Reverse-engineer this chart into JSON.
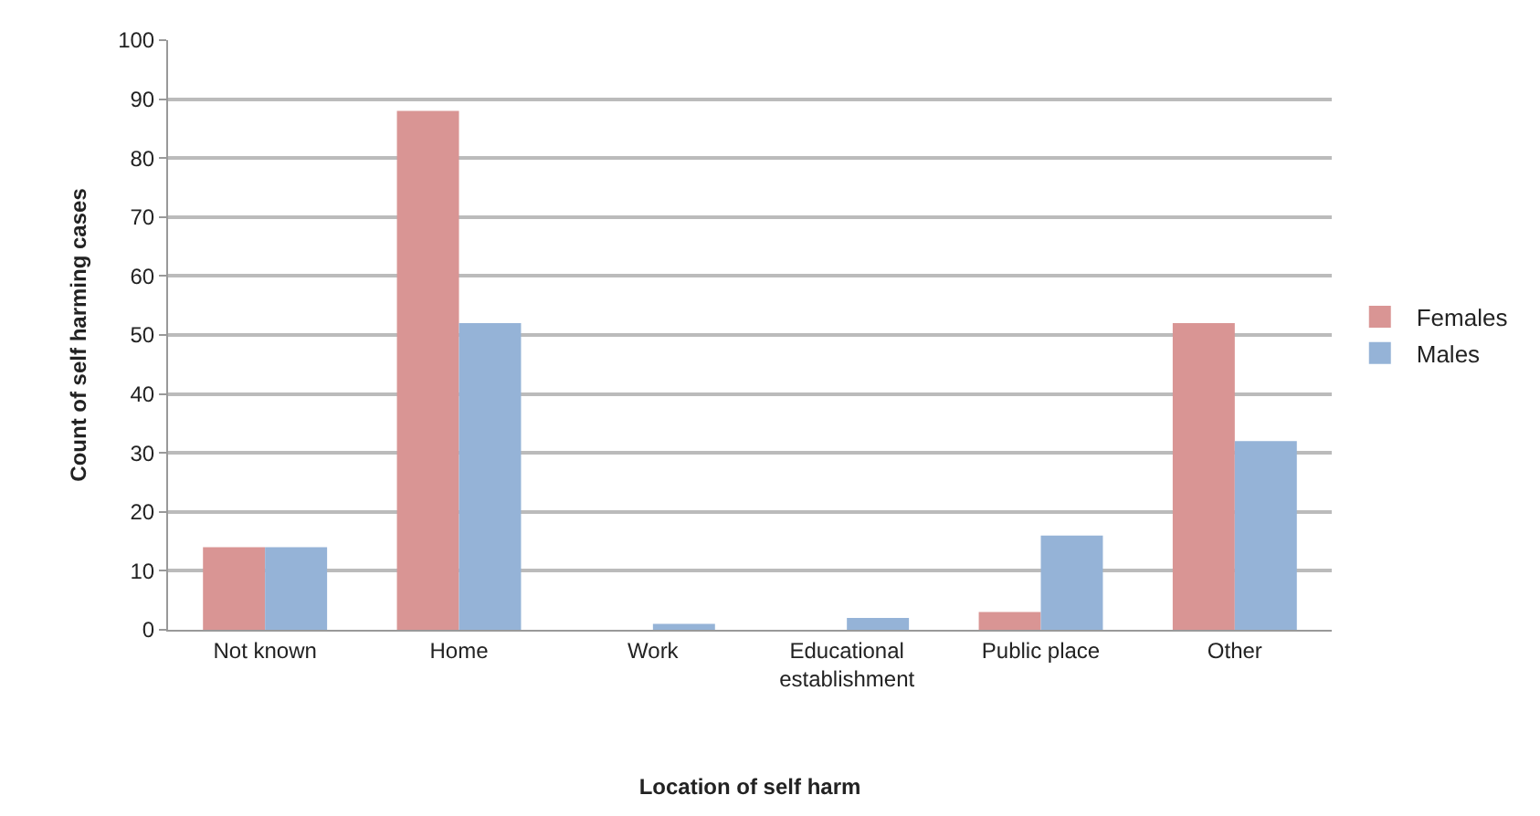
{
  "chart_data": {
    "type": "bar",
    "xlabel": "Location of self harm",
    "ylabel": "Count of self harming cases",
    "categories": [
      "Not known",
      "Home",
      "Work",
      "Educational establishment",
      "Public place",
      "Other"
    ],
    "series": [
      {
        "name": "Females",
        "color": "#d99594",
        "values": [
          14,
          88,
          0,
          0,
          3,
          52
        ]
      },
      {
        "name": "Males",
        "color": "#95b3d7",
        "values": [
          14,
          52,
          1,
          2,
          16,
          32
        ]
      }
    ],
    "ylim": [
      0,
      100
    ],
    "yticks": [
      0,
      10,
      20,
      30,
      40,
      50,
      60,
      70,
      80,
      90,
      100
    ],
    "grid": "y",
    "legend": "right"
  }
}
